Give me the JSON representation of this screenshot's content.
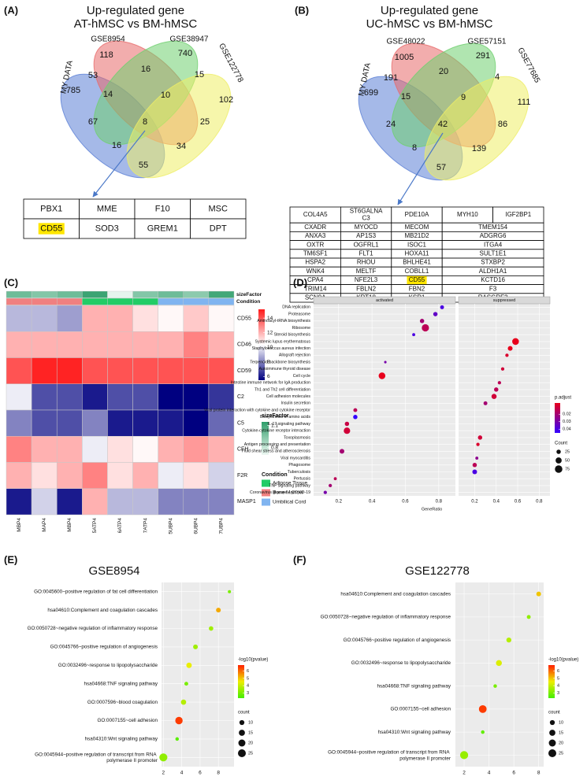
{
  "chart_data": [
    {
      "type": "venn",
      "label": "(A)",
      "title": [
        "Up-regulated gene",
        "AT-hMSC vs BM-hMSC"
      ],
      "sets": [
        "MY DATA",
        "GSE8954",
        "GSE38947",
        "GSE122778"
      ],
      "colors": [
        "#5b7fd6",
        "#e86a6a",
        "#6fcf6f",
        "#eeee66"
      ],
      "counts": [
        785,
        118,
        740,
        102,
        53,
        16,
        15,
        14,
        10,
        25,
        67,
        8,
        34,
        16,
        55
      ],
      "table": {
        "rows": [
          [
            "PBX1",
            "MME",
            "F10",
            "MSC"
          ],
          [
            "CD55",
            "SOD3",
            "GREM1",
            "DPT"
          ]
        ],
        "highlight": [
          1,
          0
        ]
      }
    },
    {
      "type": "venn",
      "label": "(B)",
      "title": [
        "Up-regulated gene",
        "UC-hMSC vs BM-hMSC"
      ],
      "sets": [
        "MY DATA",
        "GSE48022",
        "GSE57151",
        "GSE77685"
      ],
      "colors": [
        "#5b7fd6",
        "#e86a6a",
        "#6fcf6f",
        "#eeee66"
      ],
      "counts": [
        699,
        1005,
        291,
        111,
        191,
        20,
        4,
        15,
        9,
        86,
        24,
        42,
        139,
        8,
        57
      ],
      "table": {
        "rows": [
          [
            "COL4A5",
            "ST6GALNAC3",
            "PDE10A",
            "MYH10",
            "IGF2BP1"
          ],
          [
            "CXADR",
            "MYOCD",
            "MECOM",
            "TMEM154"
          ],
          [
            "ANXA3",
            "AP1S3",
            "MB21D2",
            "ADGRG6"
          ],
          [
            "OXTR",
            "OGFRL1",
            "ISOC1",
            "ITGA4"
          ],
          [
            "TM6SF1",
            "FLT1",
            "HOXA11",
            "SULT1E1"
          ],
          [
            "HSPA2",
            "RHOU",
            "BHLHE41",
            "STXBP2"
          ],
          [
            "WNK4",
            "MELTF",
            "COBLL1",
            "ALDH1A1"
          ],
          [
            "CPA4",
            "NFE2L3",
            "CD55",
            "KCTD16"
          ],
          [
            "TRIM14",
            "FBLN2",
            "FBN2",
            "F3"
          ],
          [
            "SCN9A",
            "KRT18",
            "KSR1",
            "RASGRF2"
          ]
        ],
        "highlight": [
          7,
          2
        ]
      }
    },
    {
      "type": "heatmap",
      "label": "(C)",
      "columns": [
        "MBP4",
        "MAP4",
        "MBP4",
        "5ATP4",
        "6ATP4",
        "7ATP4",
        "5UBP4",
        "6UBP4",
        "7UBP4"
      ],
      "rows": [
        "CD55",
        "CD46",
        "CD59",
        "C2",
        "C5",
        "CFH",
        "F2R",
        "MASP1"
      ],
      "values": [
        [
          9,
          9,
          8.5,
          12,
          12,
          11,
          10.5,
          11.5,
          10.5
        ],
        [
          12,
          12,
          12,
          12,
          12,
          12,
          12,
          13,
          12
        ],
        [
          14,
          15,
          15,
          14,
          14,
          14,
          14,
          14,
          14
        ],
        [
          10,
          7,
          7,
          6,
          7,
          7,
          5.5,
          5.5,
          6.5
        ],
        [
          8,
          7,
          7,
          8,
          6,
          6,
          6,
          5.5,
          7.5
        ],
        [
          13,
          12,
          12,
          10,
          11,
          10.5,
          12,
          12.5,
          12
        ],
        [
          12,
          11,
          12,
          13,
          11,
          12,
          10,
          11,
          9.5
        ],
        [
          6,
          9.5,
          6,
          12,
          9,
          9,
          8,
          8,
          8
        ]
      ],
      "colors": [
        "#000080",
        "#ffffff",
        "#ff1a1a"
      ],
      "color_lim": [
        5.5,
        15.2
      ],
      "color_ticks": [
        6,
        8,
        10,
        12,
        14
      ],
      "size_factor": {
        "title": "sizeFactor",
        "values": [
          1.0,
          0.95,
          1.0,
          1.12,
          0.72,
          0.95,
          1.0,
          0.93,
          1.1
        ],
        "lim": [
          0.7,
          1.15
        ],
        "ticks": [
          0.8,
          1.1
        ],
        "colors": [
          "#eef8f3",
          "#2e9e6a"
        ]
      },
      "condition": {
        "title": "Condition",
        "names": [
          "Adipose Tissue",
          "Bone Marrow",
          "Umbilical Cord"
        ],
        "colors": [
          "#22cc66",
          "#f08080",
          "#80b4f0"
        ],
        "values": [
          "Bone Marrow",
          "Bone Marrow",
          "Bone Marrow",
          "Adipose Tissue",
          "Adipose Tissue",
          "Adipose Tissue",
          "Umbilical Cord",
          "Umbilical Cord",
          "Umbilical Cord"
        ]
      }
    },
    {
      "type": "dotplot",
      "label": "(D)",
      "categories": [
        "DNA replication",
        "Proteasome",
        "Aminoacyl-tRNA biosynthesis",
        "Ribosome",
        "Steroid biosynthesis",
        "Systemic lupus erythematosus",
        "Staphylococcus aureus infection",
        "Allograft rejection",
        "Terpenoid backbone biosynthesis",
        "Autoimmune thyroid disease",
        "Cell cycle",
        "Intestine immune network for IgA production",
        "Th1 and Th2 cell differentiation",
        "Cell adhesion molecules",
        "Insulin secretion",
        "Viral protein interaction with cytokine and cytokine receptor",
        "Biosynthesis of amino acids",
        "IL-17 signaling pathway",
        "Cytokine-cytokine receptor interaction",
        "Toxoplasmosis",
        "Antigen processing and presentation",
        "Fluid shear stress and atherosclerosis",
        "Viral myocarditis",
        "Phagosome",
        "Tuberculosis",
        "Pertussis",
        "TNF signaling pathway",
        "Coronavirus disease – COVID-19"
      ],
      "facets": [
        {
          "name": "activated",
          "x": [
            0.82,
            0.78,
            0.7,
            0.72,
            0.65,
            null,
            null,
            null,
            0.48,
            null,
            0.46,
            null,
            null,
            null,
            null,
            0.3,
            0.3,
            0.25,
            0.25,
            null,
            null,
            0.22,
            null,
            null,
            null,
            0.18,
            0.15,
            0.12
          ],
          "count": [
            20,
            25,
            25,
            70,
            12,
            null,
            null,
            null,
            8,
            null,
            60,
            null,
            null,
            null,
            null,
            20,
            25,
            25,
            55,
            null,
            null,
            30,
            null,
            null,
            null,
            12,
            15,
            15
          ],
          "color": [
            0.04,
            0.035,
            0.02,
            0.015,
            0.04,
            null,
            null,
            null,
            0.03,
            null,
            0.004,
            null,
            null,
            null,
            null,
            0.015,
            0.045,
            0.012,
            0.01,
            null,
            null,
            0.02,
            null,
            null,
            null,
            0.015,
            0.02,
            0.03
          ]
        },
        {
          "name": "suppressed",
          "x": [
            null,
            null,
            null,
            null,
            null,
            0.58,
            0.53,
            0.5,
            null,
            0.46,
            null,
            0.43,
            0.4,
            0.38,
            0.3,
            null,
            null,
            null,
            null,
            0.25,
            0.23,
            null,
            0.22,
            0.2,
            0.2,
            null,
            null,
            null
          ],
          "count": [
            null,
            null,
            null,
            null,
            null,
            60,
            30,
            15,
            null,
            15,
            null,
            15,
            25,
            35,
            20,
            null,
            null,
            null,
            null,
            25,
            15,
            null,
            12,
            25,
            30,
            null,
            null,
            null
          ],
          "color": [
            null,
            null,
            null,
            null,
            null,
            0.003,
            0.005,
            0.008,
            null,
            0.01,
            null,
            0.015,
            0.015,
            0.01,
            0.02,
            null,
            null,
            null,
            null,
            0.01,
            0.008,
            null,
            0.025,
            0.015,
            0.04,
            null,
            null,
            null
          ]
        }
      ],
      "xlim": [
        0.05,
        0.9
      ],
      "xticks": [
        0.2,
        0.4,
        0.6,
        0.8
      ],
      "xlabel": "GeneRatio",
      "color_legend": {
        "title": "p.adjust",
        "lim": [
          0.005,
          0.045
        ],
        "ticks": [
          0.02,
          0.03,
          0.04
        ],
        "colors": [
          "#e8001c",
          "#3300ff"
        ]
      },
      "size_legend": {
        "title": "Count",
        "ticks": [
          25,
          50,
          75
        ]
      }
    },
    {
      "type": "dotplot",
      "label": "(E)",
      "title": "GSE8954",
      "categories": [
        "GO:0045600~positive regulation of fat cell differentiation",
        "hsa04610:Complement and coagulation cascades",
        "GO:0050728~negative regulation of inflammatory response",
        "GO:0045766~positive regulation of angiogenesis",
        "GO:0032496~response to lipopolysaccharide",
        "hsa04668:TNF signaling pathway",
        "GO:0007596~blood coagulation",
        "GO:0007155~cell adhesion",
        "hsa04310:Wnt signaling pathway",
        "GO:0045944~positive regulation of transcript from RNA polymerase II promoter"
      ],
      "facets": [
        {
          "x": [
            9.2,
            8.0,
            7.2,
            5.5,
            4.8,
            4.5,
            4.2,
            3.7,
            3.5,
            2.0
          ],
          "count": [
            4,
            9,
            8,
            9,
            12,
            6,
            11,
            22,
            5,
            26
          ],
          "color": [
            3.0,
            5.3,
            3.5,
            3.5,
            4.5,
            3.0,
            3.8,
            6.5,
            2.6,
            3.3
          ]
        }
      ],
      "xlim": [
        1.8,
        9.7
      ],
      "xticks": [
        2,
        4,
        6,
        8
      ],
      "color_legend": {
        "title": "-log10(pvalue)",
        "lim": [
          2.3,
          6.8
        ],
        "ticks": [
          3,
          4,
          5,
          6
        ],
        "colors": [
          "#44ee00",
          "#eeee00",
          "#ff2000"
        ]
      },
      "size_legend": {
        "title": "count",
        "ticks": [
          10,
          15,
          20,
          25
        ]
      }
    },
    {
      "type": "dotplot",
      "label": "(F)",
      "title": "GSE122778",
      "categories": [
        "hsa04610:Complement and coagulation cascades",
        "GO:0050728~negative regulation of inflammatory response",
        "GO:0045766~positive regulation of angiogenesis",
        "GO:0032496~response to lipopolysaccharide",
        "hsa04668:TNF signaling pathway",
        "GO:0007155~cell adhesion",
        "hsa04310:Wnt signaling pathway",
        "GO:0045944~positive regulation of transcript from RNA polymerase II promoter"
      ],
      "facets": [
        {
          "x": [
            8.0,
            7.2,
            5.6,
            4.8,
            4.5,
            3.5,
            3.5,
            2.0
          ],
          "count": [
            9,
            6,
            10,
            14,
            5,
            24,
            5,
            26
          ],
          "color": [
            5.0,
            3.3,
            3.8,
            4.3,
            3.0,
            6.5,
            2.7,
            3.4
          ]
        }
      ],
      "xlim": [
        1.3,
        8.4
      ],
      "xticks": [
        2,
        4,
        6,
        8
      ],
      "color_legend": {
        "title": "-log10(pvalue)",
        "lim": [
          2.3,
          6.8
        ],
        "ticks": [
          3,
          4,
          5,
          6
        ],
        "colors": [
          "#44ee00",
          "#eeee00",
          "#ff2000"
        ]
      },
      "size_legend": {
        "title": "count",
        "ticks": [
          10,
          15,
          20,
          25
        ]
      }
    }
  ]
}
